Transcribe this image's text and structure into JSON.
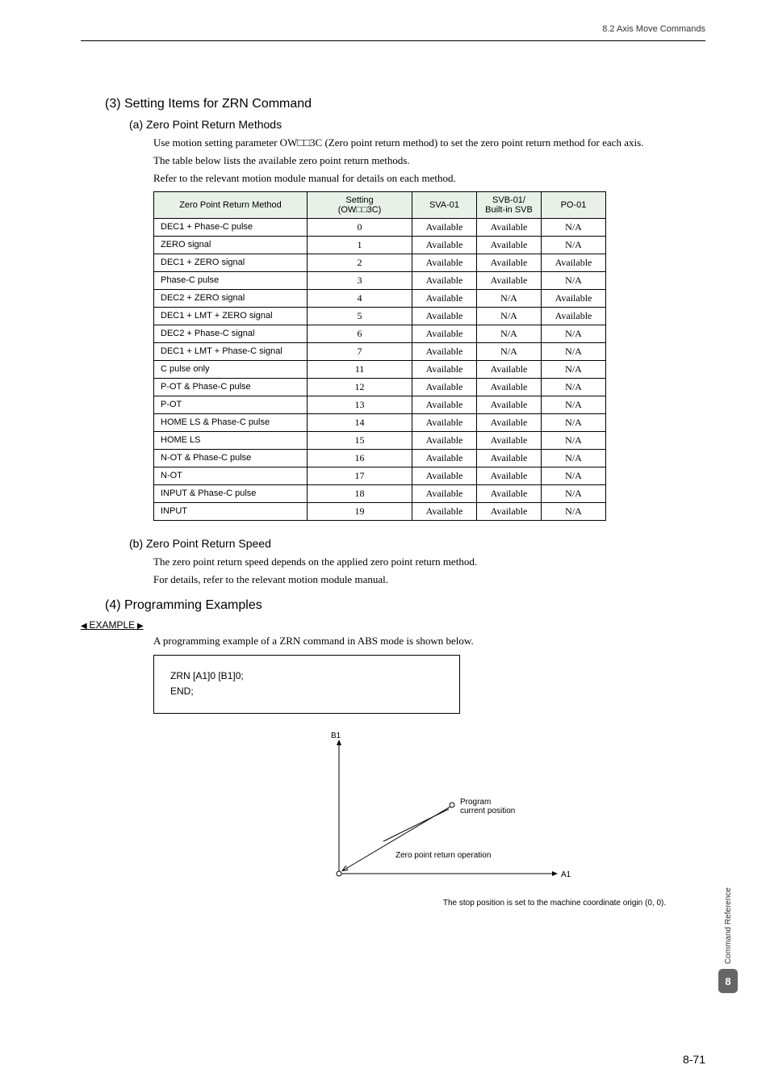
{
  "header": {
    "section": "8.2  Axis Move Commands"
  },
  "s3": {
    "title": "(3) Setting Items for ZRN Command",
    "a": {
      "title": "(a) Zero Point Return Methods",
      "p1": "Use motion setting parameter OW□□3C (Zero point return method) to set the zero point return method for each axis.",
      "p2": "The table below lists the available zero point return methods.",
      "p3": "Refer to the relevant motion module manual for details on each method."
    },
    "b": {
      "title": "(b) Zero Point Return Speed",
      "p1": "The zero point return speed depends on the applied zero point return method.",
      "p2": "For details, refer to the relevant motion module manual."
    }
  },
  "table": {
    "headers": {
      "method": "Zero Point Return Method",
      "setting_l1": "Setting",
      "setting_l2": "(OW□□3C)",
      "sva": "SVA-01",
      "svb_l1": "SVB-01/",
      "svb_l2": "Built-in SVB",
      "po": "PO-01"
    },
    "rows": [
      {
        "m": "DEC1 + Phase-C pulse",
        "s": "0",
        "sva": "Available",
        "svb": "Available",
        "po": "N/A"
      },
      {
        "m": "ZERO signal",
        "s": "1",
        "sva": "Available",
        "svb": "Available",
        "po": "N/A"
      },
      {
        "m": "DEC1 + ZERO signal",
        "s": "2",
        "sva": "Available",
        "svb": "Available",
        "po": "Available"
      },
      {
        "m": "Phase-C pulse",
        "s": "3",
        "sva": "Available",
        "svb": "Available",
        "po": "N/A"
      },
      {
        "m": "DEC2 + ZERO signal",
        "s": "4",
        "sva": "Available",
        "svb": "N/A",
        "po": "Available"
      },
      {
        "m": "DEC1 + LMT + ZERO signal",
        "s": "5",
        "sva": "Available",
        "svb": "N/A",
        "po": "Available"
      },
      {
        "m": "DEC2 + Phase-C signal",
        "s": "6",
        "sva": "Available",
        "svb": "N/A",
        "po": "N/A"
      },
      {
        "m": "DEC1 + LMT + Phase-C signal",
        "s": "7",
        "sva": "Available",
        "svb": "N/A",
        "po": "N/A"
      },
      {
        "m": "C pulse only",
        "s": "11",
        "sva": "Available",
        "svb": "Available",
        "po": "N/A"
      },
      {
        "m": "P-OT & Phase-C pulse",
        "s": "12",
        "sva": "Available",
        "svb": "Available",
        "po": "N/A"
      },
      {
        "m": "P-OT",
        "s": "13",
        "sva": "Available",
        "svb": "Available",
        "po": "N/A"
      },
      {
        "m": "HOME LS & Phase-C pulse",
        "s": "14",
        "sva": "Available",
        "svb": "Available",
        "po": "N/A"
      },
      {
        "m": "HOME LS",
        "s": "15",
        "sva": "Available",
        "svb": "Available",
        "po": "N/A"
      },
      {
        "m": "N-OT & Phase-C pulse",
        "s": "16",
        "sva": "Available",
        "svb": "Available",
        "po": "N/A"
      },
      {
        "m": "N-OT",
        "s": "17",
        "sva": "Available",
        "svb": "Available",
        "po": "N/A"
      },
      {
        "m": "INPUT & Phase-C pulse",
        "s": "18",
        "sva": "Available",
        "svb": "Available",
        "po": "N/A"
      },
      {
        "m": "INPUT",
        "s": "19",
        "sva": "Available",
        "svb": "Available",
        "po": "N/A"
      }
    ]
  },
  "s4": {
    "title": "(4) Programming Examples",
    "example_label": "EXAMPLE",
    "intro": "A programming example of a ZRN command in ABS mode is shown below.",
    "code_l1": "ZRN [A1]0 [B1]0;",
    "code_l2": "END;"
  },
  "diagram": {
    "b1": "B1",
    "a1": "A1",
    "prog_l1": "Program",
    "prog_l2": "current position",
    "zret": "Zero point return operation",
    "caption": "The stop position is set to the machine coordinate origin (0, 0).",
    "axis_color": "#000000",
    "arrow_color": "#000000",
    "text_font": "Arial",
    "text_size": 10
  },
  "sidebar": {
    "label": "Command Reference",
    "chapter": "8"
  },
  "footer": {
    "page": "8-71"
  }
}
